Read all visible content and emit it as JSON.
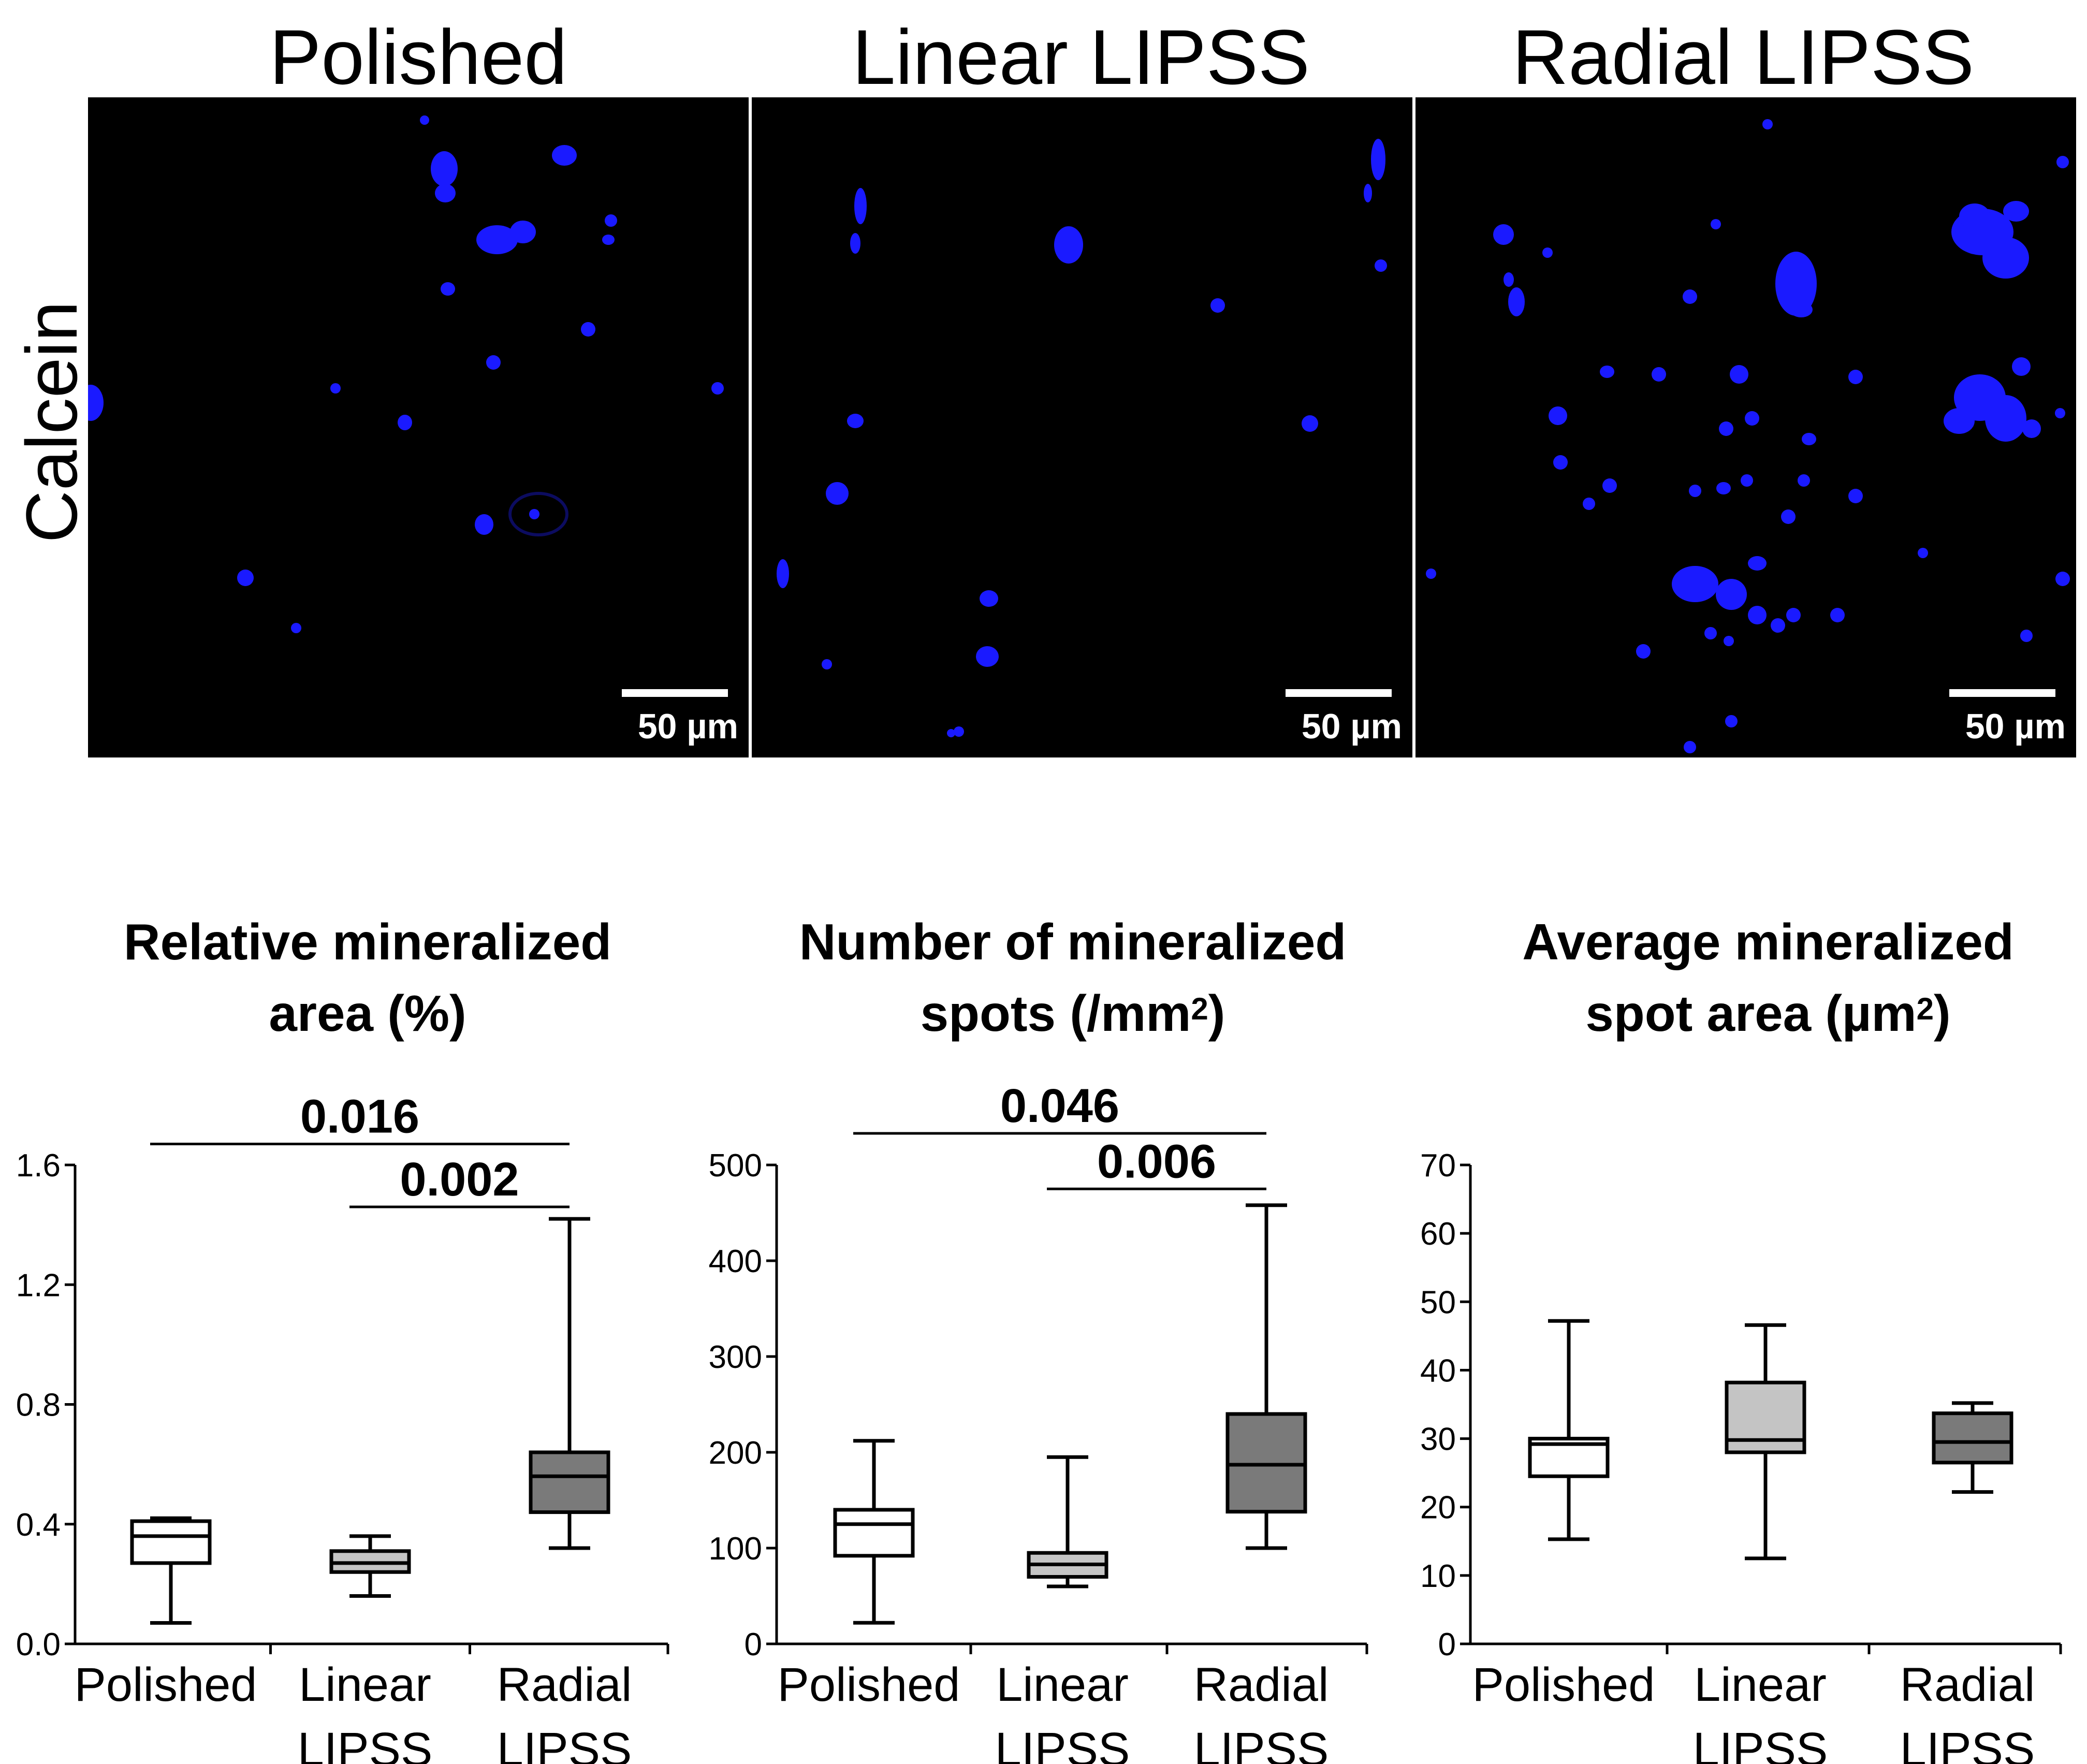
{
  "figure": {
    "panel_titles": [
      "Polished",
      "Linear LIPSS",
      "Radial LIPSS"
    ],
    "row_label": "Calcein",
    "scale_bar_label": "50 µm",
    "spot_color": "#1a1aff"
  },
  "chart_data": [
    {
      "type": "box",
      "title_line1": "Relative mineralized",
      "title_line2": "area (%)",
      "title_sup": "",
      "title_tail": "",
      "categories": [
        [
          "Polished"
        ],
        [
          "Linear",
          "LIPSS"
        ],
        [
          "Radial",
          "LIPSS"
        ]
      ],
      "colors": [
        "#ffffff",
        "#c4c4c4",
        "#7a7a7a"
      ],
      "ylim": [
        0.0,
        1.6
      ],
      "yticks": [
        "0.0",
        "0.4",
        "0.8",
        "1.2",
        "1.6"
      ],
      "ytick_values": [
        0.0,
        0.4,
        0.8,
        1.2,
        1.6
      ],
      "boxes": [
        {
          "min": 0.07,
          "q1": 0.27,
          "median": 0.36,
          "q3": 0.41,
          "max": 0.42
        },
        {
          "min": 0.16,
          "q1": 0.24,
          "median": 0.27,
          "q3": 0.31,
          "max": 0.36
        },
        {
          "min": 0.32,
          "q1": 0.44,
          "median": 0.56,
          "q3": 0.64,
          "max": 1.42
        }
      ],
      "significance": [
        {
          "from": 0,
          "to": 2,
          "label": "0.016",
          "level": 1.67
        },
        {
          "from": 1,
          "to": 2,
          "label": "0.002",
          "level": 1.46
        }
      ]
    },
    {
      "type": "box",
      "title_line1": "Number of mineralized",
      "title_line2": "spots (/mm",
      "title_sup": "2",
      "title_tail": ")",
      "categories": [
        [
          "Polished"
        ],
        [
          "Linear",
          "LIPSS"
        ],
        [
          "Radial",
          "LIPSS"
        ]
      ],
      "colors": [
        "#ffffff",
        "#c4c4c4",
        "#7a7a7a"
      ],
      "ylim": [
        0,
        500
      ],
      "yticks": [
        "0",
        "100",
        "200",
        "300",
        "400",
        "500"
      ],
      "ytick_values": [
        0,
        100,
        200,
        300,
        400,
        500
      ],
      "boxes": [
        {
          "min": 22,
          "q1": 92,
          "median": 125,
          "q3": 140,
          "max": 212
        },
        {
          "min": 60,
          "q1": 70,
          "median": 83,
          "q3": 95,
          "max": 195
        },
        {
          "min": 100,
          "q1": 138,
          "median": 187,
          "q3": 240,
          "max": 458
        }
      ],
      "significance": [
        {
          "from": 0,
          "to": 2,
          "label": "0.046",
          "level": 533
        },
        {
          "from": 1,
          "to": 2,
          "label": "0.006",
          "level": 475
        }
      ]
    },
    {
      "type": "box",
      "title_line1": "Average mineralized",
      "title_line2": "spot area (µm",
      "title_sup": "2",
      "title_tail": ")",
      "categories": [
        [
          "Polished"
        ],
        [
          "Linear",
          "LIPSS"
        ],
        [
          "Radial",
          "LIPSS"
        ]
      ],
      "colors": [
        "#ffffff",
        "#c4c4c4",
        "#7a7a7a"
      ],
      "ylim": [
        0,
        70
      ],
      "yticks": [
        "0",
        "10",
        "20",
        "30",
        "40",
        "50",
        "60",
        "70"
      ],
      "ytick_values": [
        0,
        10,
        20,
        30,
        40,
        50,
        60,
        70
      ],
      "boxes": [
        {
          "min": 15.3,
          "q1": 24.5,
          "median": 29.2,
          "q3": 30.0,
          "max": 47.2
        },
        {
          "min": 12.5,
          "q1": 28.0,
          "median": 29.8,
          "q3": 38.2,
          "max": 46.6
        },
        {
          "min": 22.2,
          "q1": 26.5,
          "median": 29.5,
          "q3": 33.7,
          "max": 35.2
        }
      ],
      "significance": []
    }
  ]
}
